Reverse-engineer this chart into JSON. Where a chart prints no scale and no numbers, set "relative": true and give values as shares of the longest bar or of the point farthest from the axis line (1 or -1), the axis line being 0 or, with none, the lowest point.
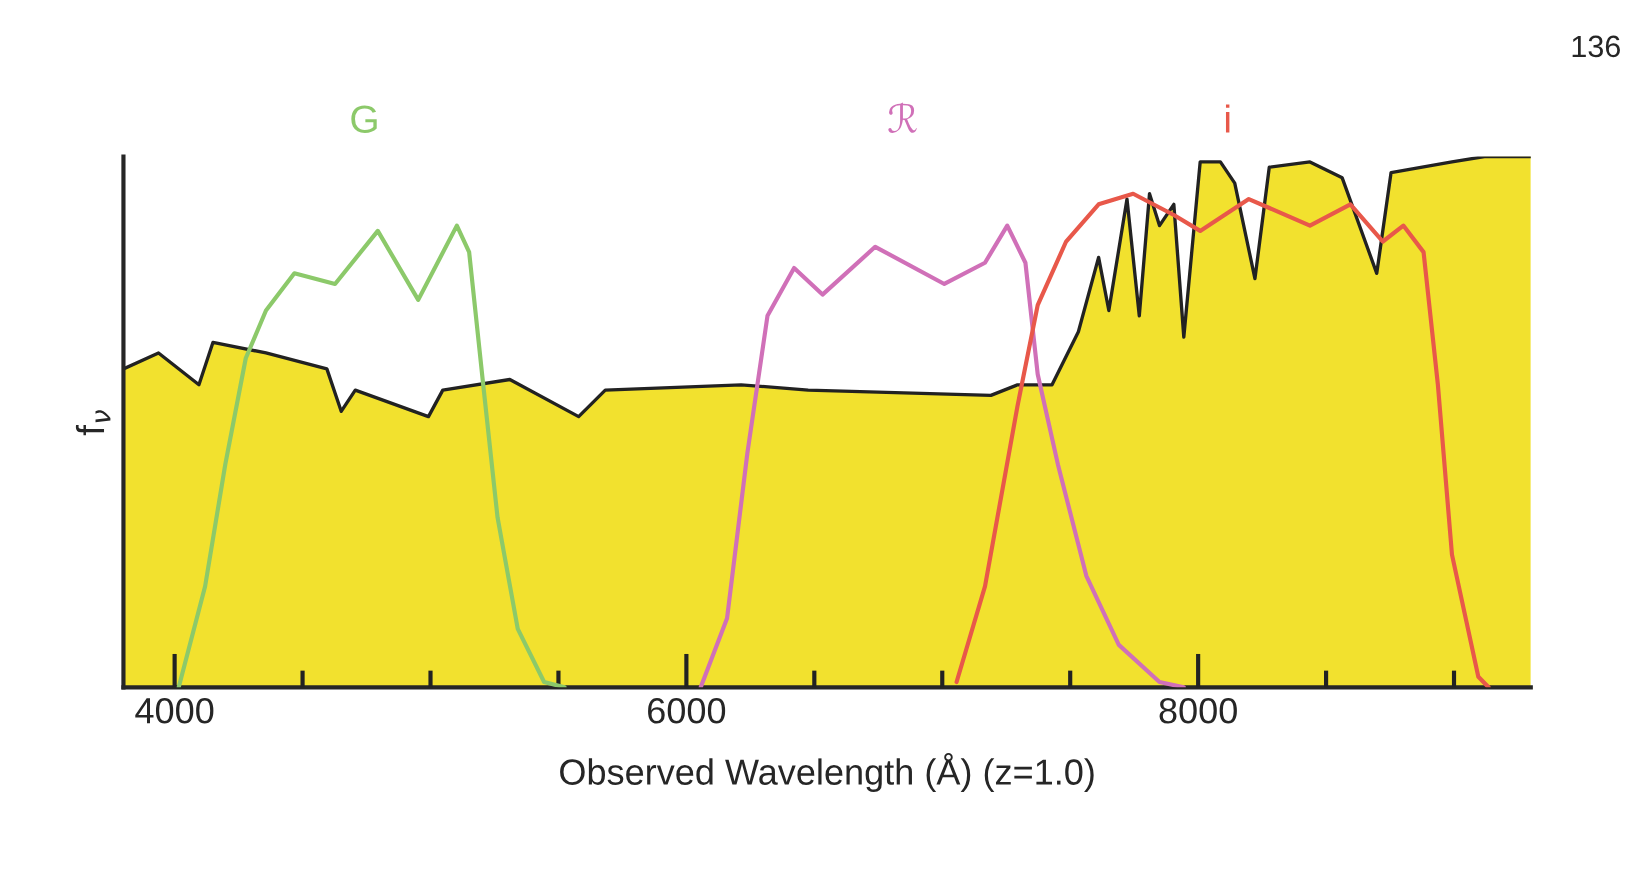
{
  "chart_data": {
    "type": "line",
    "relative": true,
    "xlabel": "Observed Wavelength (Å) (z=1.0)",
    "ylabel": "f$_{ν}$",
    "xlim": [
      3800,
      9300
    ],
    "xticks": [
      4000,
      {
        "value": 4500,
        "label": null
      },
      {
        "value": 5000,
        "label": null
      },
      {
        "value": 5500,
        "label": null
      },
      6000,
      {
        "value": 6500,
        "label": null
      },
      {
        "value": 7000,
        "label": null
      },
      {
        "value": 7500,
        "label": null
      },
      8000,
      {
        "value": 8500,
        "label": null
      },
      {
        "value": 9000,
        "label": null
      }
    ],
    "grid": false,
    "legend": false,
    "marker": "none",
    "line_style": "solid",
    "annotations": [
      "136"
    ],
    "series": [
      {
        "type": "area",
        "color": "#f2e12e",
        "x": [
          3800,
          3937,
          4095,
          4150,
          4357,
          4595,
          4651,
          4706,
          4992,
          5048,
          5310,
          5579,
          5683,
          6214,
          6476,
          7190,
          7294,
          7429,
          7532,
          7611,
          7651,
          7722,
          7770,
          7810,
          7849,
          7905,
          7944,
          8008,
          8087,
          8143,
          8222,
          8278,
          8437,
          8563,
          8698,
          8754,
          8992,
          9119,
          9300
        ],
        "values": [
          0.6,
          0.63,
          0.57,
          0.65,
          0.63,
          0.6,
          0.52,
          0.56,
          0.51,
          0.56,
          0.58,
          0.51,
          0.56,
          0.57,
          0.56,
          0.55,
          0.57,
          0.57,
          0.67,
          0.81,
          0.71,
          0.92,
          0.7,
          0.93,
          0.87,
          0.91,
          0.66,
          0.99,
          0.99,
          0.95,
          0.77,
          0.98,
          0.99,
          0.96,
          0.78,
          0.97,
          0.99,
          1.0,
          1.0
        ]
      },
      {
        "name": "G",
        "color": "#8cc96a",
        "x": [
          4016,
          4119,
          4198,
          4278,
          4357,
          4468,
          4627,
          4794,
          4952,
          5103,
          5151,
          5206,
          5262,
          5341,
          5444,
          5524
        ],
        "values": [
          0,
          0.19,
          0.42,
          0.62,
          0.71,
          0.78,
          0.76,
          0.86,
          0.73,
          0.87,
          0.82,
          0.57,
          0.32,
          0.11,
          0.01,
          0
        ]
      },
      {
        "name": "ℛ",
        "color": "#d070b8",
        "x": [
          6056,
          6159,
          6238,
          6317,
          6421,
          6532,
          6738,
          7008,
          7167,
          7254,
          7325,
          7373,
          7452,
          7563,
          7690,
          7849,
          7944
        ],
        "values": [
          0,
          0.13,
          0.44,
          0.7,
          0.79,
          0.74,
          0.83,
          0.76,
          0.8,
          0.87,
          0.8,
          0.59,
          0.42,
          0.21,
          0.08,
          0.01,
          0
        ]
      },
      {
        "name": "i",
        "color": "#e8584a",
        "x": [
          7056,
          7167,
          7294,
          7373,
          7484,
          7611,
          7746,
          7905,
          8008,
          8198,
          8437,
          8595,
          8722,
          8802,
          8881,
          8937,
          8992,
          9095,
          9135
        ],
        "values": [
          0.01,
          0.19,
          0.53,
          0.72,
          0.84,
          0.91,
          0.93,
          0.89,
          0.86,
          0.92,
          0.87,
          0.91,
          0.84,
          0.87,
          0.82,
          0.57,
          0.25,
          0.02,
          0
        ]
      }
    ]
  }
}
